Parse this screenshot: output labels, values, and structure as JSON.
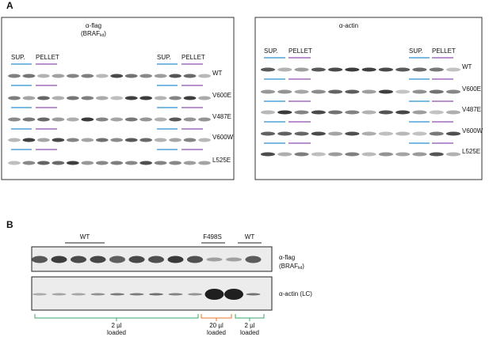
{
  "panel_a": {
    "label": "A",
    "flag_blot": {
      "title": "α-flag",
      "subtitle": "(BRAF",
      "subtitle_sub": "kd",
      "subtitle_end": ")",
      "lanes": [
        "SUP.",
        "PELLET",
        "SUP.",
        "PELLET"
      ],
      "rows": [
        "WT",
        "V600E",
        "V487E",
        "V600W",
        "L525E"
      ]
    },
    "actin_blot": {
      "title": "α-actin",
      "lanes": [
        "SUP.",
        "PELLET",
        "SUP.",
        "PELLET"
      ],
      "rows": [
        "WT",
        "V600E",
        "V487E",
        "V600W",
        "L525E"
      ]
    }
  },
  "panel_b": {
    "label": "B",
    "groups": [
      "WT",
      "F498S",
      "WT"
    ],
    "flag_blot": {
      "title": "α-flag",
      "subtitle": "(BRAF",
      "subtitle_sub": "kd",
      "subtitle_end": ")"
    },
    "actin_blot": {
      "title": "α-actin (LC)"
    },
    "loading": [
      {
        "amount": "2 µl",
        "note": "loaded"
      },
      {
        "amount": "20 µl",
        "note": "loaded"
      },
      {
        "amount": "2 µl",
        "note": "loaded"
      }
    ]
  }
}
